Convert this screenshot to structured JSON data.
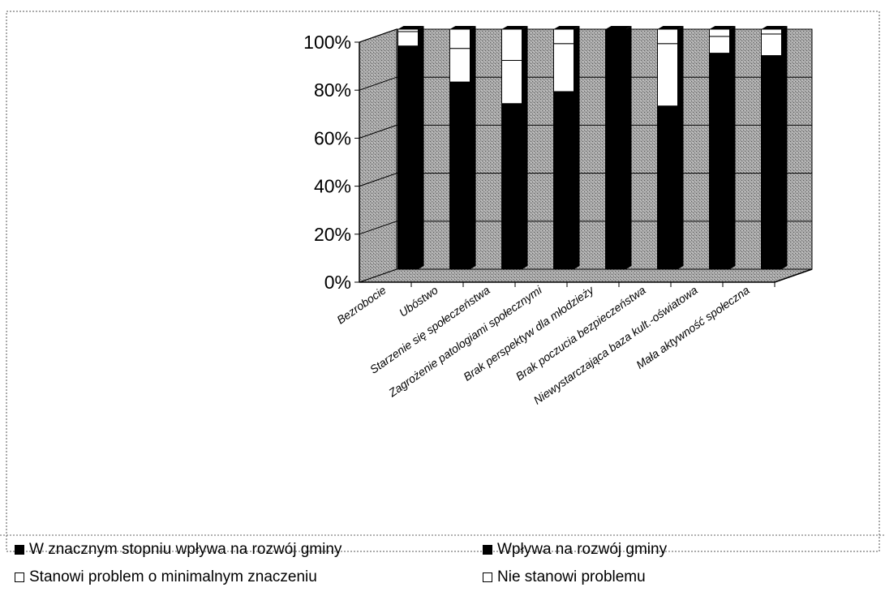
{
  "chart_data": {
    "type": "bar",
    "stacked": "100%",
    "three_d": true,
    "categories": [
      "Bezrobocie",
      "Ubóstwo",
      "Starzenie się społeczeństwa",
      "Zagrożenie patologiami społecznymi",
      "Brak perspektyw dla młodzieży",
      "Brak poczucia bezpieczeństwa",
      "Niewystarczająca baza kult.-oświatowa",
      "Mała aktywność społeczna"
    ],
    "series": [
      {
        "name": "W znacznym stopniu wpływa na rozwój gminy",
        "color": "#000000",
        "values": [
          93,
          78,
          69,
          74,
          100,
          68,
          90,
          89
        ]
      },
      {
        "name": "Wpływa na rozwój gminy",
        "color": "#000000",
        "values": [
          0,
          0,
          0,
          0,
          0,
          0,
          0,
          0
        ]
      },
      {
        "name": "Stanowi problem o minimalnym znaczeniu",
        "color": "#ffffff",
        "values": [
          6,
          14,
          18,
          20,
          0,
          26,
          7,
          9
        ]
      },
      {
        "name": "Nie stanowi problemu",
        "color": "#ffffff",
        "values": [
          1,
          8,
          13,
          6,
          0,
          6,
          3,
          2
        ]
      }
    ],
    "y_ticks": [
      "0%",
      "20%",
      "40%",
      "60%",
      "80%",
      "100%"
    ],
    "ylim": [
      0,
      100
    ],
    "grid": true,
    "legend_position": "bottom"
  }
}
